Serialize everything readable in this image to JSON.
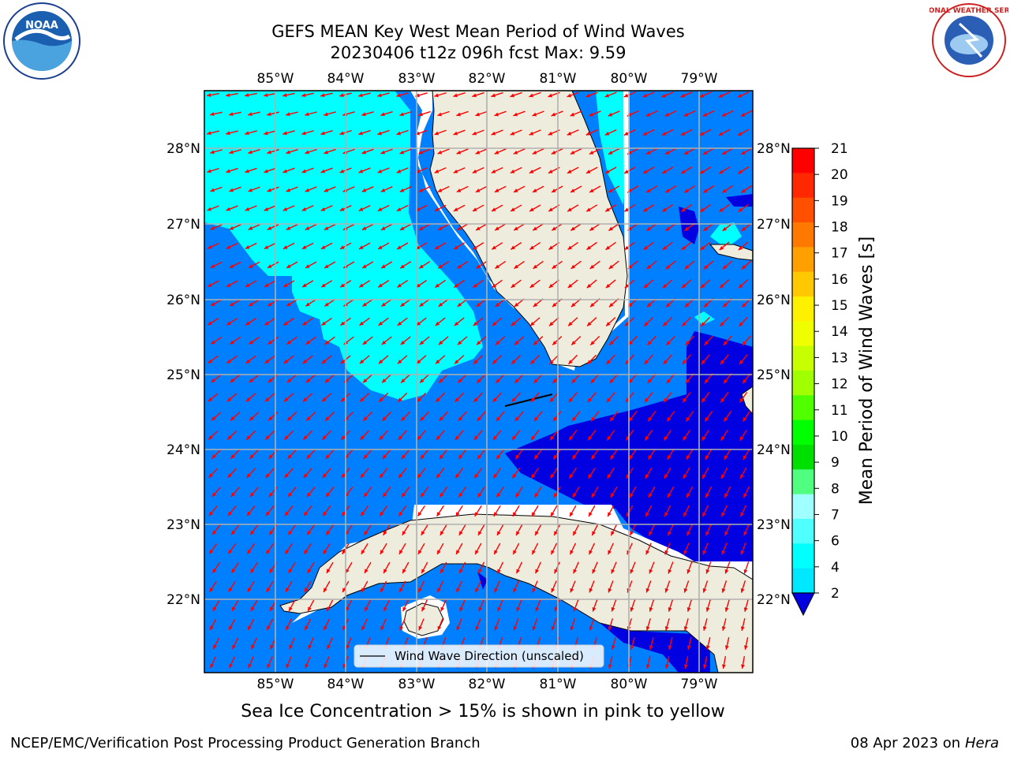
{
  "header": {
    "title_line1": "GEFS MEAN Key West Mean Period of Wind Waves",
    "title_line2": "20230406 t12z 096h fcst   Max: 9.59"
  },
  "logos": {
    "left": "NOAA",
    "right": "NATIONAL WEATHER SERVICE"
  },
  "map": {
    "lon_labels": [
      "85°W",
      "84°W",
      "83°W",
      "82°W",
      "81°W",
      "80°W",
      "79°W"
    ],
    "lat_labels": [
      "28°N",
      "27°N",
      "26°N",
      "25°N",
      "24°N",
      "23°N",
      "22°N"
    ],
    "legend_label": "Wind Wave Direction (unscaled)",
    "colors": {
      "shelf_light": "#00ffff",
      "ocean_mid": "#0080ff",
      "ocean_deep": "#0000e0",
      "land": "#eeeddd",
      "arrow": "#ff0000",
      "grid": "#b0b0b0"
    }
  },
  "colorbar": {
    "label": "Mean Period of Wind Waves [s]",
    "ticks": [
      "21",
      "20",
      "19",
      "18",
      "17",
      "16",
      "15",
      "14",
      "13",
      "12",
      "11",
      "10",
      "9",
      "8",
      "7",
      "6",
      "4",
      "2"
    ],
    "colors": [
      "#ff0000",
      "#ff2800",
      "#ff5000",
      "#ff7800",
      "#ffa000",
      "#ffc800",
      "#fff000",
      "#f0ff00",
      "#c8ff00",
      "#a0ff00",
      "#50ff00",
      "#00ff00",
      "#00e000",
      "#50ff80",
      "#a0ffff",
      "#50ffff",
      "#00ffff",
      "#00e8ff",
      "#0080ff"
    ]
  },
  "notes": {
    "sea_ice": "Sea Ice Concentration > 15% is shown in pink to yellow",
    "footer_left": "NCEP/EMC/Verification Post Processing Product Generation Branch",
    "footer_right_date": "08 Apr 2023 on ",
    "footer_right_host": "Hera"
  }
}
